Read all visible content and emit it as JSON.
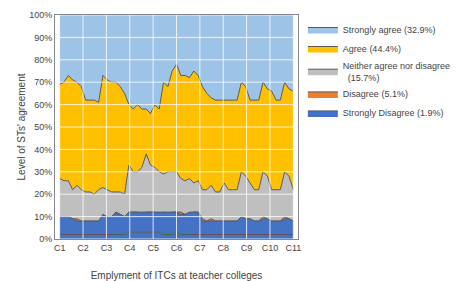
{
  "chart_data": {
    "type": "area",
    "stacked": false,
    "xlabel": "Emplyment of ITCs at teacher colleges",
    "ylabel": "Level of STs' agreement",
    "color": "#595959",
    "grid": true,
    "legend": "right",
    "x": [
      0,
      0.1851852,
      0.3703704,
      0.5555556,
      0.7407407,
      0.9259259,
      1.1111111,
      1.2962963,
      1.4814815,
      1.6666667,
      1.8518519,
      2.037037,
      2.2222222,
      2.4074074,
      2.5925926,
      2.7777778,
      2.962963,
      3.1481481,
      3.3333333,
      3.5185185,
      3.7037037,
      3.8888889,
      4.0740741,
      4.2592593,
      4.4444444,
      4.6296296,
      4.8148148,
      5,
      5.1851852,
      5.3703704,
      5.5555556,
      5.7407407,
      5.9259259,
      6.1111111,
      6.2962963,
      6.4814815,
      6.6666667,
      6.8518519,
      7.037037,
      7.2222222,
      7.4074074,
      7.5925926,
      7.7777778,
      7.962963,
      8.1481481,
      8.3333333,
      8.5185185,
      8.7037037,
      8.8888889,
      9.0740741,
      9.2592593,
      9.4444444,
      9.6296296,
      9.8148148,
      10
    ],
    "xlim": [
      -0.2,
      10.2
    ],
    "xticks": [
      {
        "value": 0,
        "label": "C1"
      },
      {
        "value": 1,
        "label": "C2"
      },
      {
        "value": 2,
        "label": "C3"
      },
      {
        "value": 3,
        "label": "C4"
      },
      {
        "value": 4,
        "label": "C5"
      },
      {
        "value": 5,
        "label": "C6"
      },
      {
        "value": 6,
        "label": "C7"
      },
      {
        "value": 7,
        "label": "C8"
      },
      {
        "value": 8,
        "label": "C9"
      },
      {
        "value": 9,
        "label": "C10"
      },
      {
        "value": 10,
        "label": "C11"
      }
    ],
    "ylim": [
      0,
      100
    ],
    "yticks": [
      {
        "value": 0,
        "label": "0%"
      },
      {
        "value": 10,
        "label": "10%"
      },
      {
        "value": 20,
        "label": "20%"
      },
      {
        "value": 30,
        "label": "30%"
      },
      {
        "value": 40,
        "label": "40%"
      },
      {
        "value": 50,
        "label": "50%"
      },
      {
        "value": 60,
        "label": "60%"
      },
      {
        "value": 70,
        "label": "70%"
      },
      {
        "value": 80,
        "label": "80%"
      },
      {
        "value": 90,
        "label": "90%"
      },
      {
        "value": 100,
        "label": "100%"
      }
    ],
    "series": [
      {
        "name": "Strongly agree (32.9%)",
        "color": "#9DC3E6",
        "values": [
          69,
          70,
          73,
          71,
          70,
          68,
          62,
          62,
          62,
          61,
          73,
          71,
          70,
          70,
          68,
          65,
          60,
          58,
          60,
          58,
          58,
          56,
          60,
          58,
          70,
          68,
          75,
          78,
          73,
          73,
          72,
          75,
          73,
          68,
          65,
          63,
          62,
          62,
          62,
          62,
          62,
          62,
          70,
          68,
          62,
          62,
          62,
          70,
          67,
          66,
          62,
          62,
          70,
          67,
          66
        ]
      },
      {
        "name": "Agree (44.4%)",
        "color": "#FFC000",
        "values": [
          27,
          26,
          26,
          22,
          24,
          22,
          21,
          21,
          20,
          22,
          23,
          22,
          21,
          21,
          21,
          20,
          33,
          30,
          30,
          32,
          38,
          33,
          32,
          30,
          29,
          30,
          30,
          30,
          27,
          26,
          27,
          25,
          26,
          22,
          22,
          24,
          21,
          21,
          25,
          22,
          22,
          22,
          30,
          28,
          25,
          22,
          22,
          30,
          28,
          22,
          22,
          22,
          30,
          28,
          22
        ]
      },
      {
        "name": "Neither agree nor disagree\n  (15.7%)",
        "color": "#BFBFBF",
        "values": [
          10,
          10,
          10,
          9,
          9,
          8,
          8,
          8,
          8,
          8,
          9,
          9,
          9,
          12,
          11,
          10,
          12,
          12,
          12,
          11,
          12,
          12,
          12,
          11,
          12,
          11,
          12,
          12,
          12,
          11,
          11,
          12,
          12,
          9,
          8,
          9,
          8,
          8,
          8,
          8,
          8,
          8,
          10,
          9,
          9,
          8,
          8,
          10,
          9,
          8,
          8,
          8,
          10,
          9,
          8
        ]
      },
      {
        "name": "Disagree (5.1%)",
        "color": "#ED7D31",
        "values": [
          10,
          10,
          10,
          9,
          8,
          8,
          8,
          8,
          8,
          8,
          11,
          10,
          10,
          12,
          11,
          10,
          12,
          12,
          12,
          12,
          12,
          12,
          12,
          12,
          12,
          12,
          12,
          12,
          11,
          11,
          12,
          12,
          12,
          8,
          8,
          8,
          8,
          8,
          8,
          8,
          8,
          8,
          10,
          9,
          9,
          8,
          8,
          9,
          9,
          8,
          8,
          8,
          9,
          9,
          8
        ]
      },
      {
        "name": "Strongly Disagree (1.9%)",
        "color": "#4472C4",
        "values": [
          2,
          2,
          2,
          2,
          2,
          2,
          2,
          2,
          2,
          2,
          2,
          2,
          2,
          2,
          2,
          2,
          3,
          3,
          3,
          3,
          3,
          3,
          3,
          3,
          2,
          2,
          2,
          3,
          2,
          2,
          2,
          2,
          2,
          2,
          2,
          2,
          2,
          2,
          2,
          2,
          2,
          2,
          2,
          2,
          2,
          2,
          2,
          2,
          2,
          2,
          2,
          2,
          2,
          2,
          2
        ]
      }
    ]
  }
}
